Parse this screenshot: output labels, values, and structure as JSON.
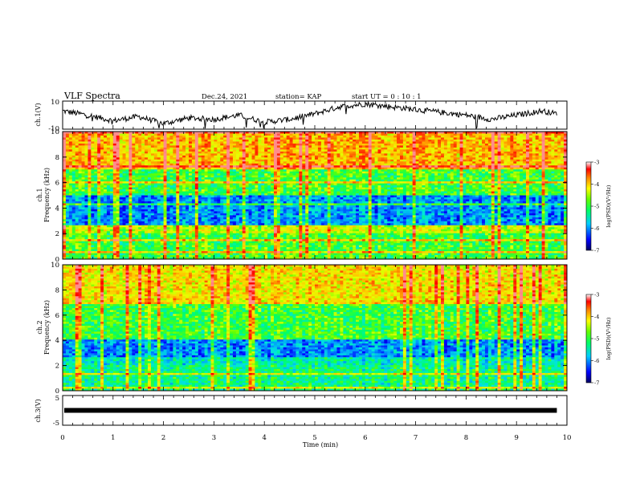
{
  "header": {
    "title": "VLF Spectra",
    "date": "Dec.24, 2021",
    "station": "station= KAP",
    "start": "start  UT =   0  : 10 : 1"
  },
  "colors": {
    "colormap": [
      "#000090",
      "#0000ff",
      "#0066ff",
      "#00ccff",
      "#00ffcc",
      "#00ff00",
      "#88ff00",
      "#ffff00",
      "#ff9900",
      "#ff0000",
      "#ff8080",
      "#ffffff"
    ],
    "waveform": "#000000"
  },
  "chart_data": [
    {
      "type": "line",
      "name": "ch1-waveform",
      "ylabel": "ch.1(V)",
      "ylim": [
        -10,
        10
      ],
      "yticks": [
        "10",
        "-10"
      ],
      "xlim": [
        0,
        10
      ],
      "x": [
        0,
        0.5,
        1,
        1.5,
        2,
        2.5,
        3,
        3.5,
        4,
        4.5,
        5,
        5.5,
        6,
        6.5,
        7,
        7.5,
        8,
        8.5,
        9,
        9.5,
        9.8
      ],
      "y": [
        3,
        0,
        -4,
        -1,
        -6,
        -2,
        -3,
        0,
        -5,
        -3,
        1,
        6,
        8,
        6,
        4,
        2,
        0,
        -3,
        0,
        3,
        1
      ]
    },
    {
      "type": "heatmap",
      "name": "ch1-spectrogram",
      "ylabel": "ch.1\nFrequency  (kHz)",
      "ylim": [
        0,
        10
      ],
      "yticks": [
        "0",
        "2",
        "4",
        "6",
        "8",
        "10"
      ],
      "xlim": [
        0,
        10
      ],
      "colorbar": {
        "label": "log(PSD)(V²/Hz)",
        "range": [
          -7,
          -3
        ],
        "ticks": [
          "-3",
          "-4",
          "-5",
          "-6",
          "-7"
        ]
      },
      "bands_khz": [
        {
          "from": 0,
          "to": 2,
          "level": -5
        },
        {
          "from": 2,
          "to": 2.6,
          "level": -4.5
        },
        {
          "from": 2.6,
          "to": 5,
          "level": -6
        },
        {
          "from": 5,
          "to": 7,
          "level": -5
        },
        {
          "from": 7,
          "to": 10,
          "level": -4
        }
      ]
    },
    {
      "type": "heatmap",
      "name": "ch2-spectrogram",
      "ylabel": "ch.2\nFrequency  (kHz)",
      "ylim": [
        0,
        10
      ],
      "yticks": [
        "0",
        "2",
        "4",
        "6",
        "8",
        "10"
      ],
      "xlim": [
        0,
        10
      ],
      "colorbar": {
        "label": "log(PSD)(V²/Hz)",
        "range": [
          -7,
          -3
        ],
        "ticks": [
          "-3",
          "-4",
          "-5",
          "-6",
          "-7"
        ]
      },
      "bands_khz": [
        {
          "from": 0,
          "to": 2,
          "level": -5.3
        },
        {
          "from": 2,
          "to": 2.6,
          "level": -5.5
        },
        {
          "from": 2.6,
          "to": 4,
          "level": -6
        },
        {
          "from": 4,
          "to": 7,
          "level": -5
        },
        {
          "from": 7,
          "to": 10,
          "level": -4.2
        }
      ]
    },
    {
      "type": "line",
      "name": "ch3-waveform",
      "ylabel": "ch.3(V)",
      "ylim": [
        -5,
        5
      ],
      "yticks": [
        "5",
        "-5"
      ],
      "xlim": [
        0,
        10
      ],
      "xlabel": "Time  (min)",
      "xticks": [
        "0",
        "1",
        "2",
        "3",
        "4",
        "5",
        "6",
        "7",
        "8",
        "9",
        "10"
      ],
      "x": [
        0,
        9.8
      ],
      "y": [
        0,
        0
      ]
    }
  ]
}
